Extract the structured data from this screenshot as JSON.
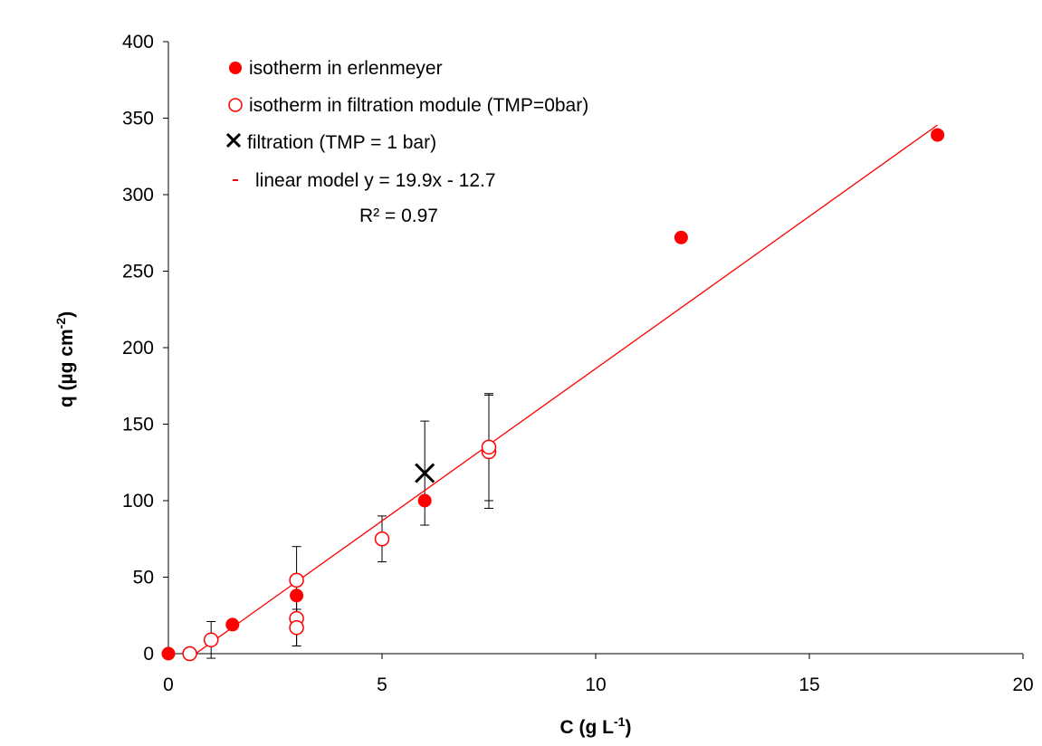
{
  "chart_data": {
    "type": "scatter",
    "title": "",
    "xlabel": "C  (g L-1)",
    "ylabel": "q (µg cm-2)",
    "xlabel_parts": {
      "main": "C  (g L",
      "sup": "-1",
      "tail": ")"
    },
    "ylabel_parts": {
      "main": "q (µg cm",
      "sup": "-2",
      "tail": ")"
    },
    "xlim": [
      0,
      20
    ],
    "ylim": [
      0,
      400
    ],
    "xticks": [
      0,
      5,
      10,
      15,
      20
    ],
    "yticks": [
      0,
      50,
      100,
      150,
      200,
      250,
      300,
      350,
      400
    ],
    "grid": false,
    "legend_position": "top-left",
    "series": [
      {
        "name": "isotherm in erlenmeyer",
        "marker": "filled-circle",
        "color": "#ff0000",
        "x": [
          0,
          1.5,
          3,
          6,
          12,
          18
        ],
        "y": [
          0,
          19,
          38,
          100,
          272,
          339
        ]
      },
      {
        "name": "isotherm in filtration module (TMP=0bar)",
        "marker": "open-circle",
        "color": "#ff0000",
        "x": [
          0.5,
          1,
          3,
          3,
          3,
          5,
          7.5,
          7.5
        ],
        "y": [
          0,
          9,
          48,
          23,
          17,
          75,
          132,
          135
        ],
        "error": [
          null,
          12,
          22,
          18,
          12,
          15,
          37,
          35
        ]
      },
      {
        "name": "filtration (TMP = 1 bar)",
        "marker": "x",
        "color": "#000000",
        "x": [
          6
        ],
        "y": [
          118
        ],
        "error": [
          34
        ]
      }
    ],
    "model": {
      "name": "linear model y = 19.9x - 12.7",
      "r2": "R² = 0.97",
      "slope": 19.9,
      "intercept": -12.7,
      "x_range": [
        0.64,
        18
      ],
      "color": "#ff0000"
    },
    "legend_markers": [
      "●",
      "○",
      "✕",
      "-"
    ]
  }
}
